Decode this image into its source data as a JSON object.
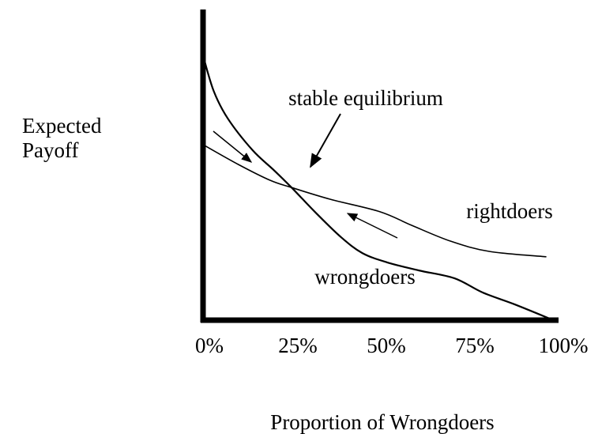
{
  "chart_data": {
    "type": "line",
    "ylabel": [
      "Expected",
      "Payoff"
    ],
    "xlabel": "Proportion of Wrongdoers",
    "annotation": "stable equilibrium",
    "xlim": [
      0,
      100
    ],
    "ylim": [
      0,
      100
    ],
    "xticks": [
      {
        "value": 0,
        "label": "0%"
      },
      {
        "value": 25,
        "label": "25%"
      },
      {
        "value": 50,
        "label": "50%"
      },
      {
        "value": 75,
        "label": "75%"
      },
      {
        "value": 100,
        "label": "100%"
      }
    ],
    "series": [
      {
        "name": "wrongdoers",
        "color": "#000000",
        "x": [
          0,
          3,
          7,
          14,
          20,
          25,
          32,
          39,
          45,
          52,
          61,
          71,
          79,
          88,
          99
        ],
        "values": [
          85.2,
          73.8,
          64.9,
          54.7,
          48.3,
          42.7,
          34.4,
          26.7,
          21.6,
          18.6,
          16.0,
          13.5,
          8.9,
          5.1,
          0
        ]
      },
      {
        "name": "rightdoers",
        "color": "#000000",
        "x": [
          0,
          10,
          19,
          25,
          36,
          50,
          59,
          70,
          81,
          97
        ],
        "values": [
          56.5,
          50.1,
          45.0,
          42.7,
          38.9,
          34.9,
          30.5,
          25.4,
          22.1,
          20.4
        ]
      }
    ]
  }
}
